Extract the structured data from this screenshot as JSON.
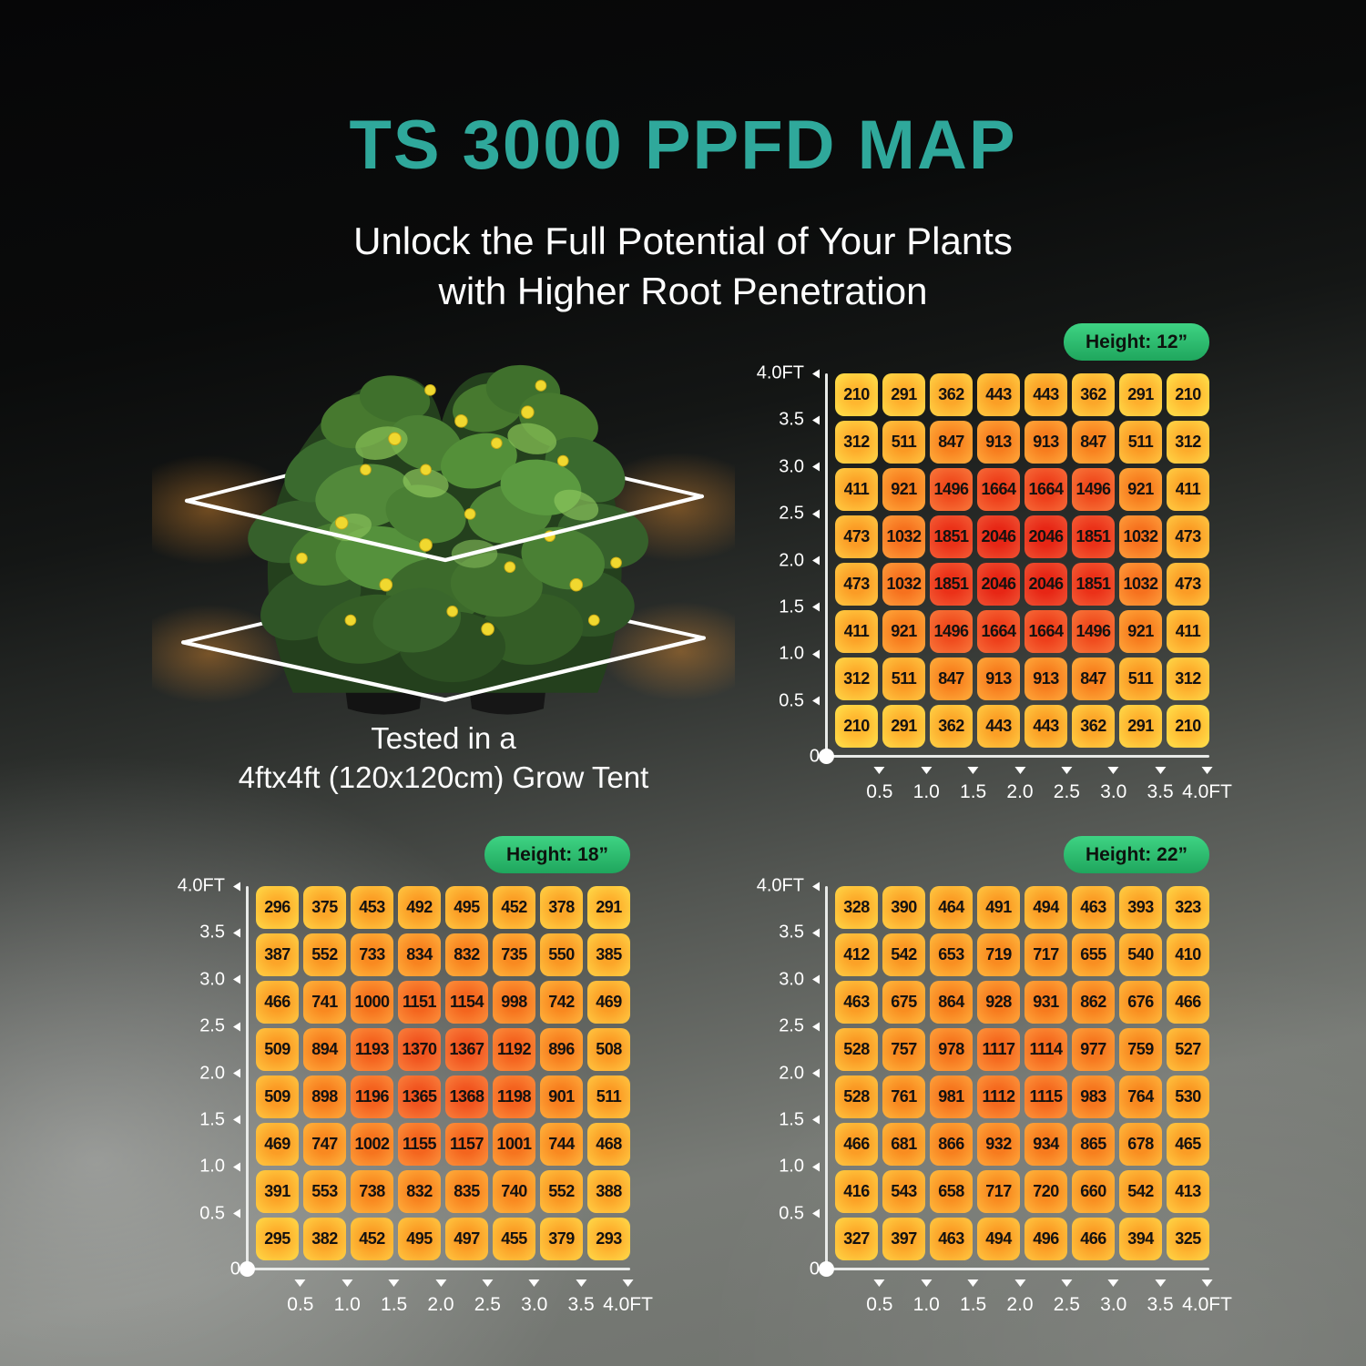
{
  "page": {
    "title": "TS 3000 PPFD MAP",
    "subtitle_line1": "Unlock the Full Potential of Your Plants",
    "subtitle_line2": "with Higher Root Penetration",
    "caption_line1": "Tested in a",
    "caption_line2": "4ftx4ft (120x120cm) Grow Tent"
  },
  "colors": {
    "title_color": "#2FA89B",
    "badge_green_light": "#3ED383",
    "badge_green_dark": "#1FA65D",
    "axis_color": "#E8EAE8",
    "cell_text": "#141210"
  },
  "axes": {
    "y_labels": [
      "4.0FT",
      "3.5",
      "3.0",
      "2.5",
      "2.0",
      "1.5",
      "1.0",
      "0.5",
      "0"
    ],
    "x_labels": [
      "0.5",
      "1.0",
      "1.5",
      "2.0",
      "2.5",
      "3.0",
      "3.5",
      "4.0FT"
    ]
  },
  "color_scale": [
    {
      "value": 210,
      "color": "#FFB72F"
    },
    {
      "value": 450,
      "color": "#FB9E25"
    },
    {
      "value": 700,
      "color": "#F98C20"
    },
    {
      "value": 900,
      "color": "#F77E1E"
    },
    {
      "value": 1100,
      "color": "#F56A1E"
    },
    {
      "value": 1300,
      "color": "#F2581F"
    },
    {
      "value": 1500,
      "color": "#F04C1E"
    },
    {
      "value": 1700,
      "color": "#ED3C1A"
    },
    {
      "value": 1900,
      "color": "#EA2E17"
    },
    {
      "value": 2046,
      "color": "#E72615"
    }
  ],
  "chart_data": [
    {
      "type": "heatmap",
      "title": "Height: 12”",
      "unit": "FT",
      "x_tick_labels": [
        "0.5",
        "1.0",
        "1.5",
        "2.0",
        "2.5",
        "3.0",
        "3.5",
        "4.0FT"
      ],
      "y_tick_labels": [
        "4.0FT",
        "3.5",
        "3.0",
        "2.5",
        "2.0",
        "1.5",
        "1.0",
        "0.5",
        "0"
      ],
      "values": [
        [
          210,
          291,
          362,
          443,
          443,
          362,
          291,
          210
        ],
        [
          312,
          511,
          847,
          913,
          913,
          847,
          511,
          312
        ],
        [
          411,
          921,
          1496,
          1664,
          1664,
          1496,
          921,
          411
        ],
        [
          473,
          1032,
          1851,
          2046,
          2046,
          1851,
          1032,
          473
        ],
        [
          473,
          1032,
          1851,
          2046,
          2046,
          1851,
          1032,
          473
        ],
        [
          411,
          921,
          1496,
          1664,
          1664,
          1496,
          921,
          411
        ],
        [
          312,
          511,
          847,
          913,
          913,
          847,
          511,
          312
        ],
        [
          210,
          291,
          362,
          443,
          443,
          362,
          291,
          210
        ]
      ]
    },
    {
      "type": "heatmap",
      "title": "Height: 18”",
      "unit": "FT",
      "x_tick_labels": [
        "0.5",
        "1.0",
        "1.5",
        "2.0",
        "2.5",
        "3.0",
        "3.5",
        "4.0FT"
      ],
      "y_tick_labels": [
        "4.0FT",
        "3.5",
        "3.0",
        "2.5",
        "2.0",
        "1.5",
        "1.0",
        "0.5",
        "0"
      ],
      "values": [
        [
          296,
          375,
          453,
          492,
          495,
          452,
          378,
          291
        ],
        [
          387,
          552,
          733,
          834,
          832,
          735,
          550,
          385
        ],
        [
          466,
          741,
          1000,
          1151,
          1154,
          998,
          742,
          469
        ],
        [
          509,
          894,
          1193,
          1370,
          1367,
          1192,
          896,
          508
        ],
        [
          509,
          898,
          1196,
          1365,
          1368,
          1198,
          901,
          511
        ],
        [
          469,
          747,
          1002,
          1155,
          1157,
          1001,
          744,
          468
        ],
        [
          391,
          553,
          738,
          832,
          835,
          740,
          552,
          388
        ],
        [
          295,
          382,
          452,
          495,
          497,
          455,
          379,
          293
        ]
      ]
    },
    {
      "type": "heatmap",
      "title": "Height: 22”",
      "unit": "FT",
      "x_tick_labels": [
        "0.5",
        "1.0",
        "1.5",
        "2.0",
        "2.5",
        "3.0",
        "3.5",
        "4.0FT"
      ],
      "y_tick_labels": [
        "4.0FT",
        "3.5",
        "3.0",
        "2.5",
        "2.0",
        "1.5",
        "1.0",
        "0.5",
        "0"
      ],
      "values": [
        [
          328,
          390,
          464,
          491,
          494,
          463,
          393,
          323
        ],
        [
          412,
          542,
          653,
          719,
          717,
          655,
          540,
          410
        ],
        [
          463,
          675,
          864,
          928,
          931,
          862,
          676,
          466
        ],
        [
          528,
          757,
          978,
          1117,
          1114,
          977,
          759,
          527
        ],
        [
          528,
          761,
          981,
          1112,
          1115,
          983,
          764,
          530
        ],
        [
          466,
          681,
          866,
          932,
          934,
          865,
          678,
          465
        ],
        [
          416,
          543,
          658,
          717,
          720,
          660,
          542,
          413
        ],
        [
          327,
          397,
          463,
          494,
          496,
          466,
          394,
          325
        ]
      ]
    }
  ]
}
